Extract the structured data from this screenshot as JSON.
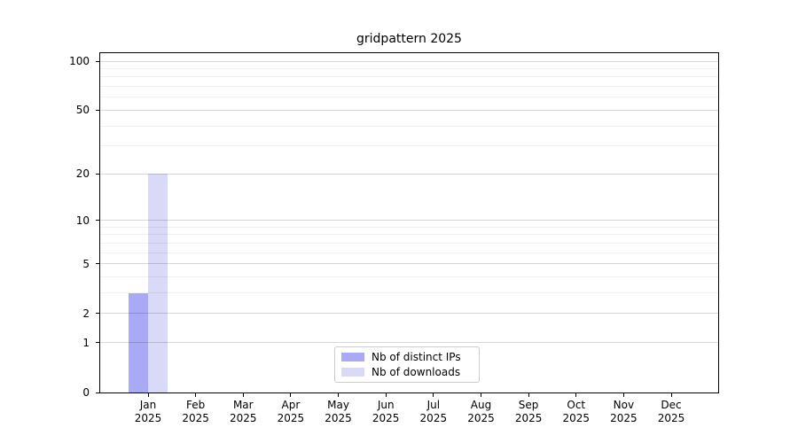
{
  "figure": {
    "title": "gridpattern 2025"
  },
  "chart_data": {
    "type": "bar",
    "title": "gridpattern 2025",
    "categories": [
      "Jan",
      "Feb",
      "Mar",
      "Apr",
      "May",
      "Jun",
      "Jul",
      "Aug",
      "Sep",
      "Oct",
      "Nov",
      "Dec"
    ],
    "category_year": "2025",
    "series": [
      {
        "name": "Nb of distinct IPs",
        "color": "#a9a9f5",
        "values": [
          3,
          0,
          0,
          0,
          0,
          0,
          0,
          0,
          0,
          0,
          0,
          0
        ]
      },
      {
        "name": "Nb of downloads",
        "color": "#d9d9f8",
        "values": [
          20,
          0,
          0,
          0,
          0,
          0,
          0,
          0,
          0,
          0,
          0,
          0
        ]
      }
    ],
    "xlabel": "",
    "ylabel": "",
    "yscale": "log1p",
    "ylim": [
      0,
      112
    ],
    "y_major_ticks": [
      0,
      1,
      2,
      5,
      10,
      20,
      50,
      100
    ],
    "y_tick_labels": [
      "0",
      "1",
      "2",
      "5",
      "10",
      "20",
      "50",
      "100"
    ],
    "y_minor_gridlines": [
      3,
      4,
      6,
      7,
      8,
      9,
      30,
      40,
      60,
      70,
      80,
      90
    ],
    "grid": true,
    "legend_position": "lower center",
    "legend_entries": [
      "Nb of distinct IPs",
      "Nb of downloads"
    ]
  },
  "colors": {
    "background": "#ffffff",
    "spine": "#000000",
    "text": "#000000",
    "major_grid": "rgba(0,0,0,0.16)",
    "minor_grid": "rgba(0,0,0,0.06)",
    "legend_border": "#cccccc"
  }
}
